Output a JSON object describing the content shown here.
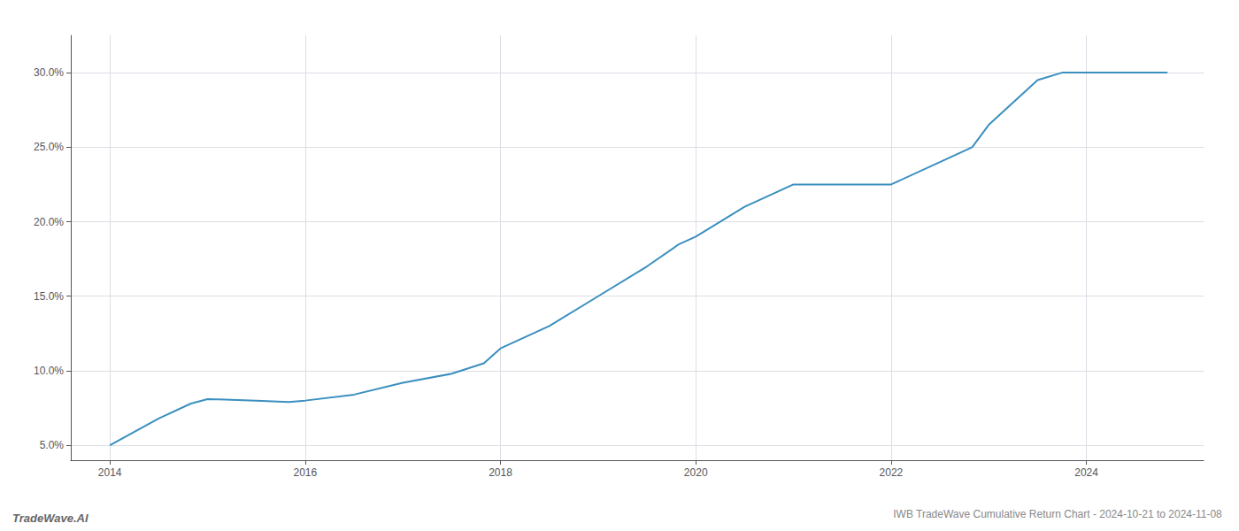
{
  "chart_data": {
    "type": "line",
    "title": "IWB TradeWave Cumulative Return Chart - 2024-10-21 to 2024-11-08",
    "annotations": [
      {
        "text": "TradeWave.AI"
      }
    ],
    "x": [
      2014.0,
      2014.5,
      2014.83,
      2015.0,
      2015.5,
      2015.83,
      2016.0,
      2016.5,
      2017.0,
      2017.5,
      2017.83,
      2018.0,
      2018.5,
      2019.0,
      2019.5,
      2019.83,
      2020.0,
      2020.5,
      2021.0,
      2021.5,
      2021.83,
      2022.0,
      2022.5,
      2022.83,
      2023.0,
      2023.25,
      2023.5,
      2023.75,
      2024.0,
      2024.5,
      2024.83
    ],
    "values": [
      5.0,
      6.8,
      7.8,
      8.1,
      8.0,
      7.9,
      8.0,
      8.4,
      9.2,
      9.8,
      10.5,
      11.5,
      13.0,
      15.0,
      17.0,
      18.5,
      19.0,
      21.0,
      22.5,
      22.5,
      22.5,
      22.5,
      24.0,
      25.0,
      26.5,
      28.0,
      29.5,
      30.0,
      30.0,
      30.0,
      30.0
    ],
    "color": "#3a8fbf",
    "xlim": [
      2013.6,
      2025.2
    ],
    "ylim": [
      4.0,
      32.5
    ],
    "xticks": [
      2014,
      2016,
      2018,
      2020,
      2022,
      2024
    ],
    "yticks": [
      {
        "value": 5.0,
        "label": "5.0%"
      },
      {
        "value": 10.0,
        "label": "10.0%"
      },
      {
        "value": 15.0,
        "label": "15.0%"
      },
      {
        "value": 20.0,
        "label": "20.0%"
      },
      {
        "value": 25.0,
        "label": "25.0%"
      },
      {
        "value": 30.0,
        "label": "30.0%"
      }
    ],
    "grid": true
  }
}
